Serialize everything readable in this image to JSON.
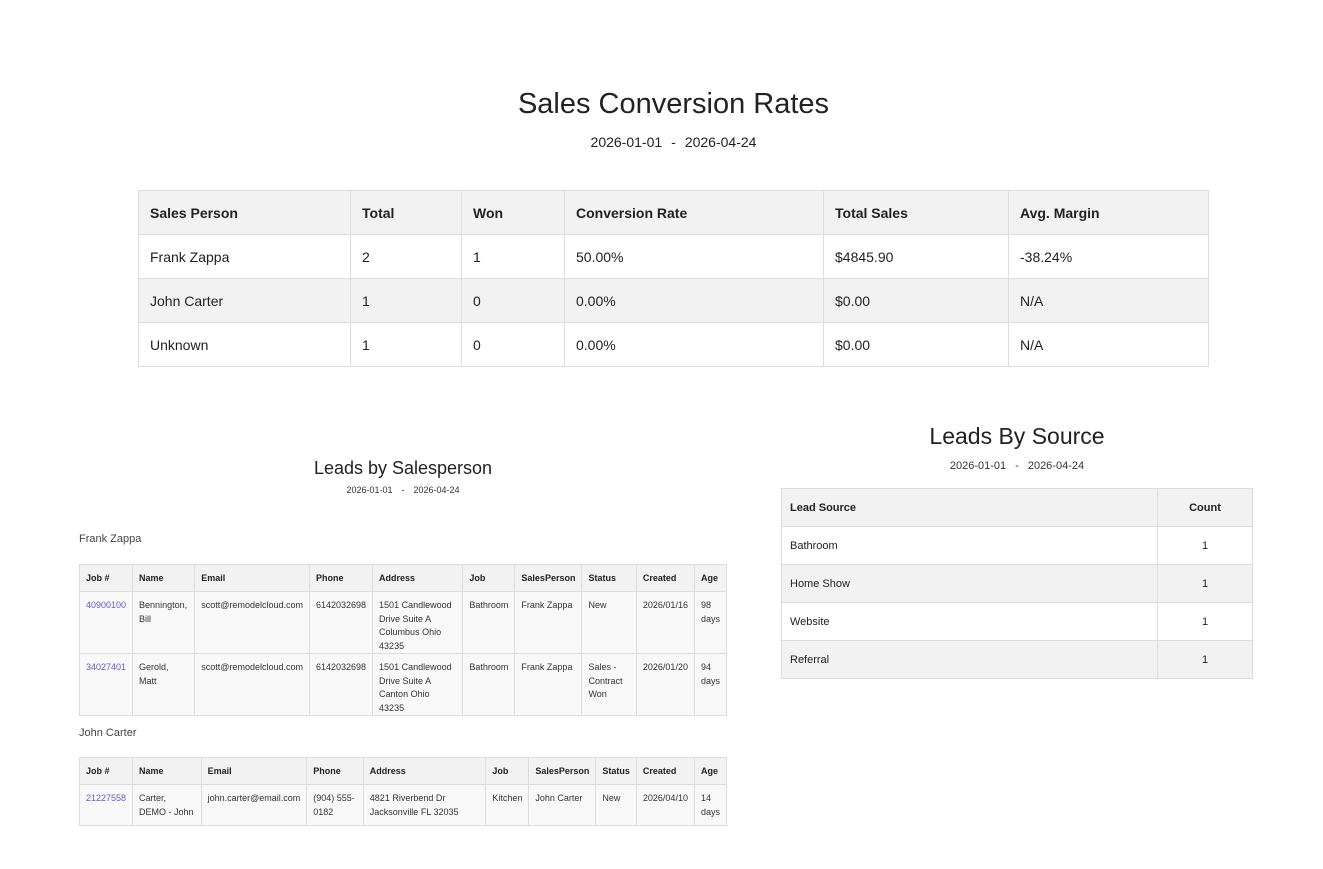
{
  "conversion": {
    "title": "Sales Conversion Rates",
    "date_from": "2026-01-01",
    "date_sep": "-",
    "date_to": "2026-04-24",
    "headers": [
      "Sales Person",
      "Total",
      "Won",
      "Conversion Rate",
      "Total Sales",
      "Avg. Margin"
    ],
    "rows": [
      [
        "Frank Zappa",
        "2",
        "1",
        "50.00%",
        "$4845.90",
        "-38.24%"
      ],
      [
        "John Carter",
        "1",
        "0",
        "0.00%",
        "$0.00",
        "N/A"
      ],
      [
        "Unknown",
        "1",
        "0",
        "0.00%",
        "$0.00",
        "N/A"
      ]
    ]
  },
  "leads_by_salesperson": {
    "title": "Leads by Salesperson",
    "date_from": "2026-01-01",
    "date_sep": "-",
    "date_to": "2026-04-24",
    "headers": [
      "Job #",
      "Name",
      "Email",
      "Phone",
      "Address",
      "Job",
      "SalesPerson",
      "Status",
      "Created",
      "Age"
    ],
    "groups": [
      {
        "name": "Frank Zappa",
        "rows": [
          [
            "40900100",
            "Bennington, Bill",
            "scott@remodelcloud.com",
            "6142032698",
            "1501 Candlewood Drive Suite A Columbus Ohio 43235",
            "Bathroom",
            "Frank Zappa",
            "New",
            "2026/01/16",
            "98 days"
          ],
          [
            "34027401",
            "Gerold, Matt",
            "scott@remodelcloud.com",
            "6142032698",
            "1501 Candlewood Drive Suite A Canton Ohio 43235",
            "Bathroom",
            "Frank Zappa",
            "Sales - Contract Won",
            "2026/01/20",
            "94 days"
          ]
        ]
      },
      {
        "name": "John Carter",
        "rows": [
          [
            "21227558",
            "Carter, DEMO - John",
            "john.carter@email.com",
            "(904) 555-0182",
            "4821 Riverbend Dr Jacksonville FL 32035",
            "Kitchen",
            "John Carter",
            "New",
            "2026/04/10",
            "14 days"
          ]
        ]
      }
    ]
  },
  "leads_by_source": {
    "title": "Leads By Source",
    "date_from": "2026-01-01",
    "date_sep": "-",
    "date_to": "2026-04-24",
    "headers": [
      "Lead Source",
      "Count"
    ],
    "rows": [
      [
        "Bathroom",
        "1"
      ],
      [
        "Home Show",
        "1"
      ],
      [
        "Website",
        "1"
      ],
      [
        "Referral",
        "1"
      ]
    ]
  },
  "colors": {
    "link": "#6a5acd",
    "header_bg": "#f2f2f2",
    "border": "#dcdcdc"
  }
}
